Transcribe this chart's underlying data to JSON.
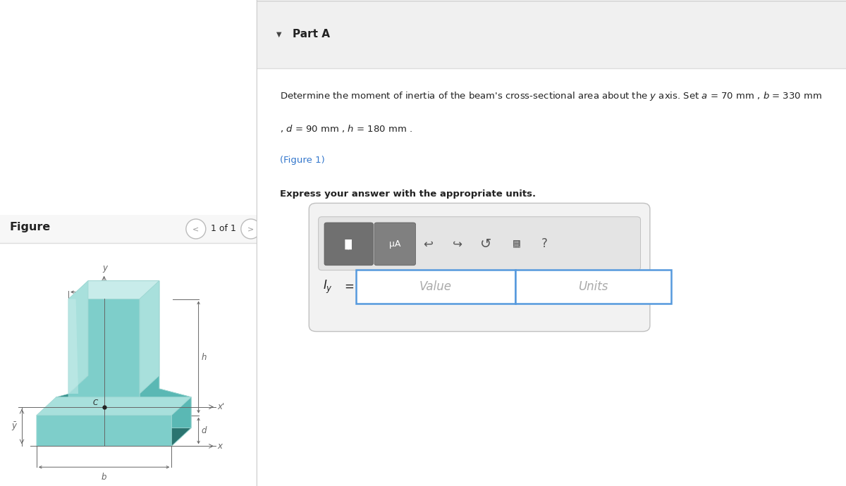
{
  "bg_color": "#ffffff",
  "left_bg": "#ffffff",
  "right_bg": "#ffffff",
  "header_bg": "#f0f0f0",
  "part_a_label": "Part A",
  "figure1_link": "(Figure 1)",
  "express_text": "Express your answer with the appropriate units.",
  "value_placeholder": "Value",
  "units_placeholder": "Units",
  "figure_label": "Figure",
  "nav_text": "1 of 1",
  "teal_color": "#7ececa",
  "teal_mid": "#5ab8b4",
  "teal_dark": "#3a9490",
  "teal_light": "#a8e0dc",
  "teal_shadow": "#2a7470",
  "teal_hilight": "#c8ecea",
  "dim_line_color": "#666666",
  "text_color": "#222222",
  "link_color": "#3377cc",
  "input_border": "#5599dd",
  "input_bg": "#ffffff",
  "input_text_color": "#aaaaaa",
  "sep_color": "#dddddd",
  "toolbar_bg": "#e8e8e8",
  "btn_bg": "#777777",
  "btn_bg2": "#888888"
}
